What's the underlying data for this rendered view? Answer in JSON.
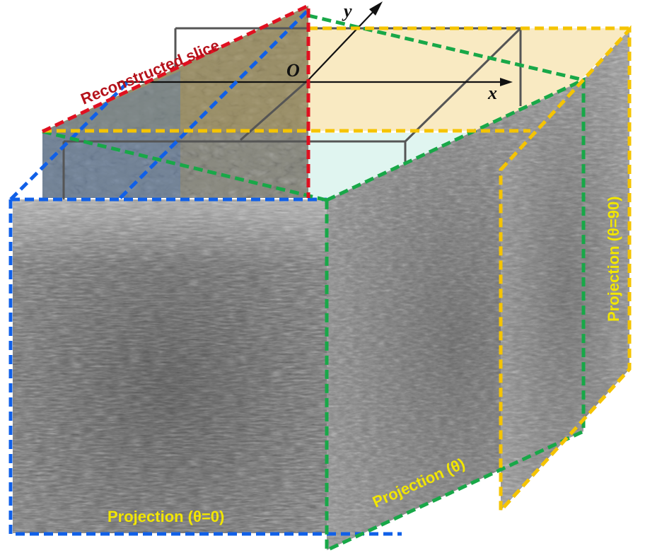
{
  "labels": {
    "reconstructed_slice": "Reconstructed slice",
    "projection_0": "Projection (θ=0)",
    "projection_theta": "Projection (θ)",
    "projection_90": "Projection (θ=90)",
    "axis_x": "x",
    "axis_y": "y",
    "origin": "O"
  },
  "colors": {
    "blue": "#1060e8",
    "green": "#18a848",
    "yellow": "#f5c400",
    "red": "#e01020",
    "label_yellow": "#f2e600",
    "label_red": "#b5121b"
  }
}
